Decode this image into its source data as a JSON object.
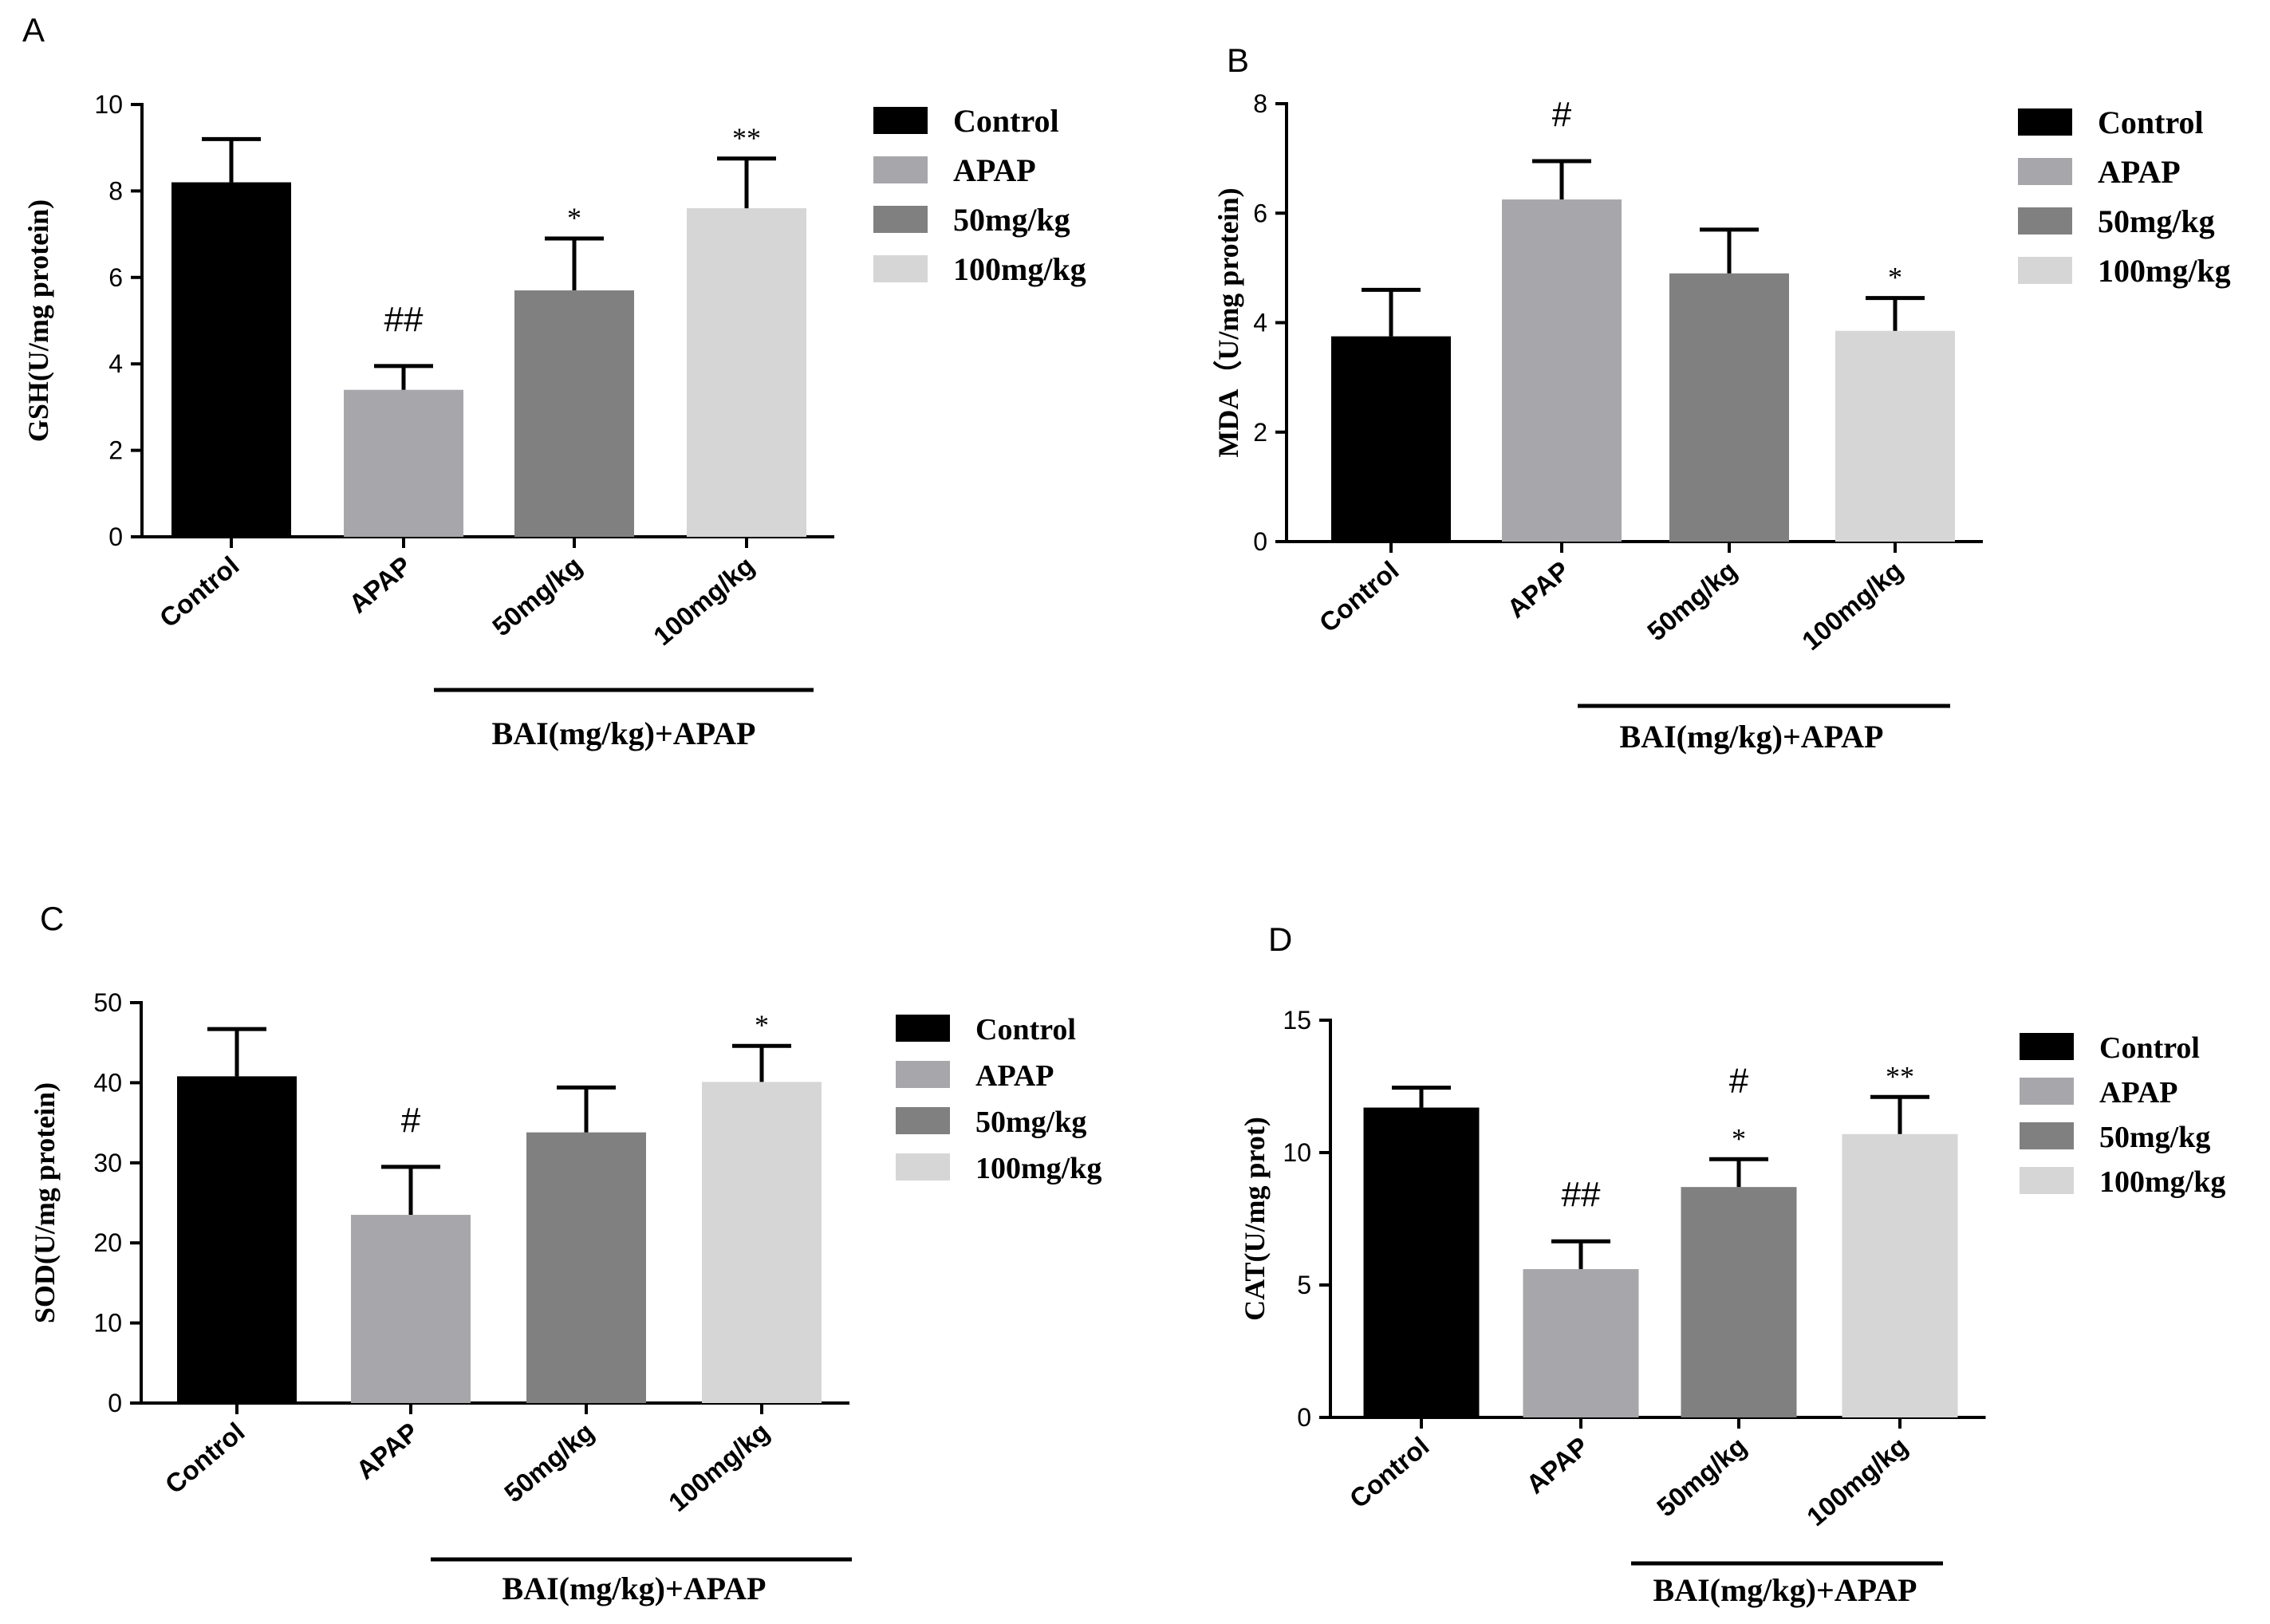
{
  "colors": {
    "control": "#000000",
    "apap": "#a7a7ab",
    "dose50": "#808080",
    "dose100": "#d6d6d6",
    "axis": "#000000"
  },
  "chart_data": [
    {
      "panel": "A",
      "type": "bar",
      "ylabel": "GSH(U/mg protein)",
      "categories": [
        "Control",
        "APAP",
        "50mg/kg",
        "100mg/kg"
      ],
      "values": [
        8.2,
        3.4,
        5.7,
        7.6
      ],
      "errors": [
        1.0,
        0.55,
        1.2,
        1.15
      ],
      "sig": [
        "",
        "##",
        "*",
        "**"
      ],
      "ylim": [
        0,
        10
      ],
      "yticks": [
        "0",
        "2",
        "4",
        "6",
        "8",
        "10"
      ],
      "legend": [
        "Control",
        "APAP",
        "50mg/kg",
        "100mg/kg"
      ],
      "legend_position": "right",
      "group_label": "BAI(mg/kg)+APAP"
    },
    {
      "panel": "B",
      "type": "bar",
      "ylabel": "MDA（U/mg protein)",
      "categories": [
        "Control",
        "APAP",
        "50mg/kg",
        "100mg/kg"
      ],
      "values": [
        3.75,
        6.25,
        4.9,
        3.85
      ],
      "errors": [
        0.85,
        0.7,
        0.8,
        0.6
      ],
      "sig": [
        "",
        "#",
        "",
        "*"
      ],
      "ylim": [
        0,
        8
      ],
      "yticks": [
        "0",
        "2",
        "4",
        "6",
        "8"
      ],
      "legend": [
        "Control",
        "APAP",
        "50mg/kg",
        "100mg/kg"
      ],
      "legend_position": "right",
      "group_label": "BAI(mg/kg)+APAP"
    },
    {
      "panel": "C",
      "type": "bar",
      "ylabel": "SOD(U/mg protein)",
      "categories": [
        "Control",
        "APAP",
        "50mg/kg",
        "100mg/kg"
      ],
      "values": [
        40.8,
        23.5,
        33.8,
        40.1
      ],
      "errors": [
        5.9,
        6.0,
        5.6,
        4.5
      ],
      "sig": [
        "",
        "#",
        "",
        "*"
      ],
      "ylim": [
        0,
        50
      ],
      "yticks": [
        "0",
        "10",
        "20",
        "30",
        "40",
        "50"
      ],
      "legend": [
        "Control",
        "APAP",
        "50mg/kg",
        "100mg/kg"
      ],
      "legend_position": "right",
      "group_label": "BAI(mg/kg)+APAP"
    },
    {
      "panel": "D",
      "type": "bar",
      "ylabel": "CAT(U/mg prot)",
      "categories": [
        "Control",
        "APAP",
        "50mg/kg",
        "100mg/kg"
      ],
      "values": [
        11.7,
        5.6,
        8.7,
        10.7
      ],
      "errors": [
        0.75,
        1.05,
        1.05,
        1.4
      ],
      "sig": [
        "",
        "##",
        "#*",
        "**"
      ],
      "ylim": [
        0,
        15
      ],
      "yticks": [
        "0",
        "5",
        "10",
        "15"
      ],
      "legend": [
        "Control",
        "APAP",
        "50mg/kg",
        "100mg/kg"
      ],
      "legend_position": "right",
      "group_label": "BAI(mg/kg)+APAP"
    }
  ]
}
